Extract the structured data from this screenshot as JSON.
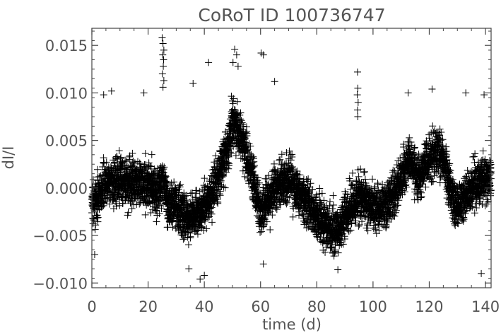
{
  "chart_data": {
    "type": "scatter",
    "title": "CoRoT ID 100736747",
    "xlabel": "time (d)",
    "ylabel": "dI/I",
    "xlim": [
      0,
      142
    ],
    "ylim": [
      -0.0105,
      0.0168
    ],
    "x_ticks": [
      0,
      20,
      40,
      60,
      80,
      100,
      120,
      140
    ],
    "x_tick_labels": [
      "0",
      "20",
      "40",
      "60",
      "80",
      "100",
      "120",
      "140"
    ],
    "y_ticks": [
      -0.01,
      -0.005,
      0.0,
      0.005,
      0.01,
      0.015
    ],
    "y_tick_labels": [
      "−0.010",
      "−0.005",
      "0.000",
      "0.005",
      "0.010",
      "0.015"
    ],
    "marker": "plus",
    "grid": false,
    "legend": "none",
    "trend": {
      "x": [
        0,
        2,
        5,
        10,
        15,
        20,
        23,
        25,
        27,
        30,
        35,
        40,
        45,
        48,
        50,
        52,
        55,
        58,
        60,
        62,
        65,
        70,
        75,
        80,
        85,
        88,
        90,
        95,
        100,
        105,
        110,
        113,
        116,
        120,
        123,
        125,
        128,
        130,
        135,
        140,
        142
      ],
      "y": [
        -0.0015,
        -0.001,
        0.0005,
        0.001,
        0.0003,
        0.0005,
        -0.0005,
        0.001,
        -0.0015,
        -0.002,
        -0.0035,
        -0.002,
        0.001,
        0.004,
        0.007,
        0.006,
        0.0035,
        0.0,
        -0.003,
        -0.0015,
        0.0,
        0.001,
        -0.001,
        -0.003,
        -0.0045,
        -0.0045,
        -0.003,
        -0.001,
        -0.002,
        -0.002,
        0.001,
        0.003,
        0.001,
        0.003,
        0.004,
        0.003,
        -0.001,
        -0.002,
        0.0,
        0.001,
        0.001
      ]
    },
    "scatter_sd": 0.0016,
    "n_points": 5200,
    "outliers": [
      {
        "x": 25.0,
        "y": 0.0158
      },
      {
        "x": 25.3,
        "y": 0.0152
      },
      {
        "x": 25.6,
        "y": 0.0145
      },
      {
        "x": 25.2,
        "y": 0.014
      },
      {
        "x": 25.5,
        "y": 0.0135
      },
      {
        "x": 25.4,
        "y": 0.0128
      },
      {
        "x": 25.1,
        "y": 0.012
      },
      {
        "x": 25.6,
        "y": 0.0113
      },
      {
        "x": 25.3,
        "y": 0.0106
      },
      {
        "x": 50.8,
        "y": 0.0146
      },
      {
        "x": 51.5,
        "y": 0.014
      },
      {
        "x": 50.2,
        "y": 0.0132
      },
      {
        "x": 52.0,
        "y": 0.0128
      },
      {
        "x": 60.2,
        "y": 0.0142
      },
      {
        "x": 61.0,
        "y": 0.014
      },
      {
        "x": 94.5,
        "y": 0.0122
      },
      {
        "x": 94.6,
        "y": 0.0105
      },
      {
        "x": 94.4,
        "y": 0.0098
      },
      {
        "x": 94.7,
        "y": 0.009
      },
      {
        "x": 94.5,
        "y": 0.0082
      },
      {
        "x": 94.6,
        "y": 0.0075
      },
      {
        "x": 41.5,
        "y": 0.0132
      },
      {
        "x": 36.0,
        "y": 0.011
      },
      {
        "x": 18.5,
        "y": 0.01
      },
      {
        "x": 7.0,
        "y": 0.0102
      },
      {
        "x": 4.2,
        "y": 0.0098
      },
      {
        "x": 65.0,
        "y": 0.0112
      },
      {
        "x": 112.5,
        "y": 0.01
      },
      {
        "x": 121.0,
        "y": 0.0104
      },
      {
        "x": 133.0,
        "y": 0.01
      },
      {
        "x": 139.5,
        "y": 0.0098
      },
      {
        "x": 138.5,
        "y": -0.009
      },
      {
        "x": 38.5,
        "y": -0.0096
      },
      {
        "x": 40.0,
        "y": -0.0092
      },
      {
        "x": 34.5,
        "y": -0.0085
      },
      {
        "x": 87.5,
        "y": -0.0086
      },
      {
        "x": 61.0,
        "y": -0.008
      },
      {
        "x": 1.0,
        "y": -0.007
      }
    ]
  }
}
